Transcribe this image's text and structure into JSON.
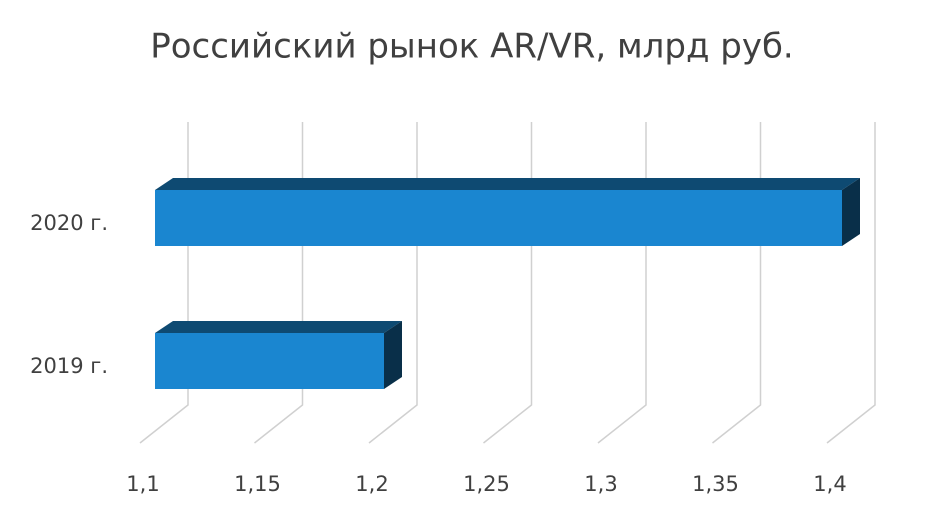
{
  "chart_data": {
    "type": "bar3d_horizontal",
    "title": "Российский рынок AR/VR, млрд руб.",
    "categories": [
      "2020 г.",
      "2019 г."
    ],
    "values": [
      1.4,
      1.2
    ],
    "color": "#1a86d0",
    "xlim": [
      1.1,
      1.4
    ],
    "xticks": [
      {
        "value": 1.1,
        "label": "1,1"
      },
      {
        "value": 1.15,
        "label": "1,15"
      },
      {
        "value": 1.2,
        "label": "1,2"
      },
      {
        "value": 1.25,
        "label": "1,25"
      },
      {
        "value": 1.3,
        "label": "1,3"
      },
      {
        "value": 1.35,
        "label": "1,35"
      },
      {
        "value": 1.4,
        "label": "1,4"
      }
    ],
    "grid": true
  }
}
